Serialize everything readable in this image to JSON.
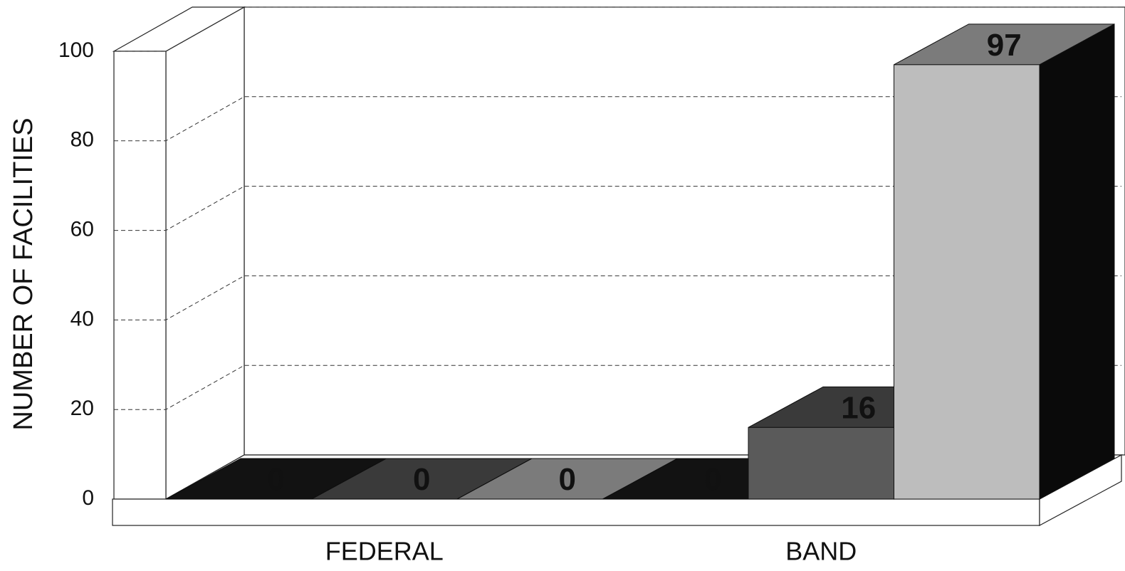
{
  "chart_data": {
    "type": "bar3d",
    "y_label": "NUMBER OF FACILITIES",
    "categories": [
      "FEDERAL",
      "BAND"
    ],
    "series": [
      {
        "color": "#1c1c1c",
        "values": [
          0,
          0
        ]
      },
      {
        "color": "#5a5a5a",
        "values": [
          0,
          16
        ]
      },
      {
        "color": "#bdbdbd",
        "values": [
          0,
          97
        ]
      }
    ],
    "ylim": [
      0,
      100
    ],
    "yticks": [
      0,
      20,
      40,
      60,
      80,
      100
    ],
    "grid": true
  }
}
